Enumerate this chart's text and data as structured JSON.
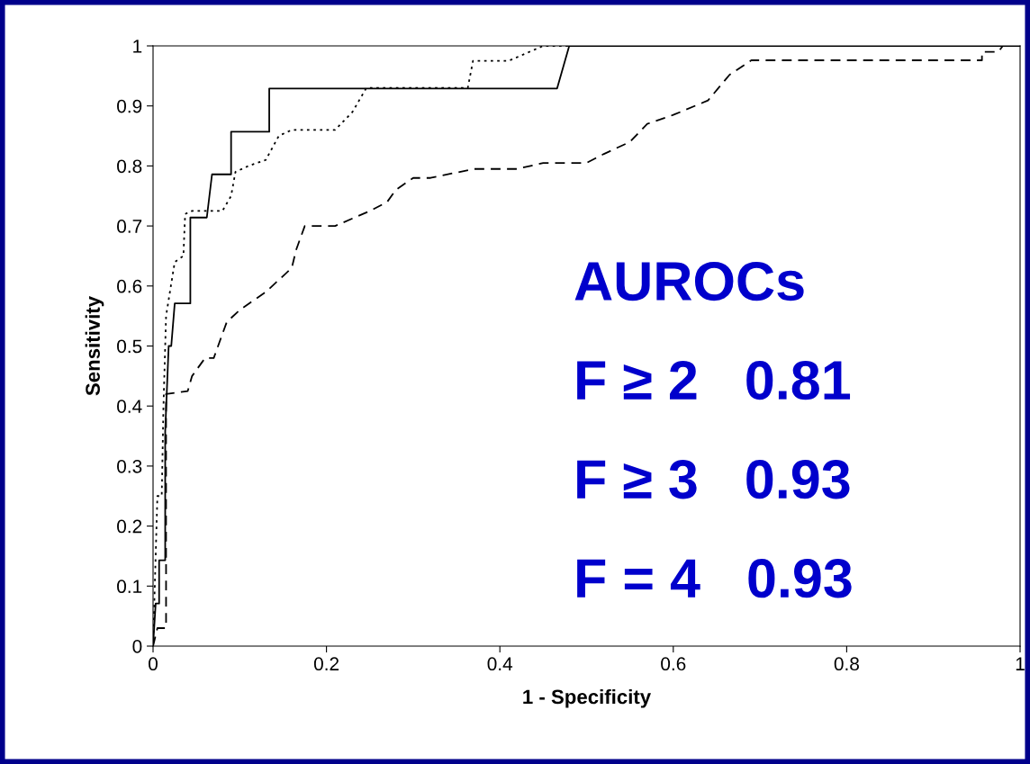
{
  "chart_data": {
    "type": "line",
    "xlabel": "1 - Specificity",
    "ylabel": "Sensitivity",
    "xlim": [
      0,
      1
    ],
    "ylim": [
      0,
      1
    ],
    "xticks": [
      0,
      0.2,
      0.4,
      0.6,
      0.8,
      1
    ],
    "yticks": [
      0,
      0.1,
      0.2,
      0.3,
      0.4,
      0.5,
      0.6,
      0.7,
      0.8,
      0.9,
      1
    ],
    "grid": false,
    "legend": false,
    "marker": "none",
    "series": [
      {
        "color": "#000000",
        "line_style": "solid",
        "x": [
          0,
          0.003,
          0.007,
          0.007,
          0.014,
          0.014,
          0.018,
          0.021,
          0.025,
          0.043,
          0.043,
          0.062,
          0.068,
          0.09,
          0.09,
          0.134,
          0.134,
          0.466,
          0.48,
          1
        ],
        "values": [
          0,
          0.071,
          0.071,
          0.143,
          0.143,
          0.357,
          0.5,
          0.5,
          0.571,
          0.571,
          0.714,
          0.714,
          0.786,
          0.786,
          0.857,
          0.857,
          0.929,
          0.929,
          1,
          1
        ]
      },
      {
        "color": "#000000",
        "line_style": "dotted",
        "x": [
          0,
          0.005,
          0.01,
          0.012,
          0.015,
          0.025,
          0.035,
          0.037,
          0.045,
          0.08,
          0.09,
          0.095,
          0.11,
          0.13,
          0.145,
          0.16,
          0.21,
          0.23,
          0.246,
          0.363,
          0.369,
          0.41,
          0.45,
          1
        ],
        "values": [
          0,
          0.25,
          0.25,
          0.4,
          0.55,
          0.64,
          0.65,
          0.72,
          0.725,
          0.725,
          0.75,
          0.79,
          0.8,
          0.81,
          0.85,
          0.86,
          0.86,
          0.89,
          0.93,
          0.93,
          0.975,
          0.975,
          1,
          1
        ]
      },
      {
        "color": "#000000",
        "line_style": "dashed",
        "x": [
          0,
          0.005,
          0.015,
          0.015,
          0.04,
          0.045,
          0.06,
          0.07,
          0.085,
          0.1,
          0.13,
          0.16,
          0.165,
          0.175,
          0.21,
          0.25,
          0.27,
          0.28,
          0.3,
          0.32,
          0.37,
          0.42,
          0.45,
          0.5,
          0.52,
          0.55,
          0.57,
          0.6,
          0.64,
          0.665,
          0.69,
          0.956,
          0.956,
          0.975,
          0.98,
          1
        ],
        "values": [
          0,
          0.03,
          0.03,
          0.42,
          0.425,
          0.45,
          0.48,
          0.48,
          0.54,
          0.56,
          0.59,
          0.63,
          0.66,
          0.7,
          0.7,
          0.725,
          0.74,
          0.76,
          0.78,
          0.78,
          0.795,
          0.795,
          0.805,
          0.805,
          0.82,
          0.84,
          0.87,
          0.885,
          0.909,
          0.952,
          0.976,
          0.976,
          0.99,
          0.99,
          1,
          1
        ]
      }
    ],
    "annotations": [
      "AUROCs",
      "F ≥ 2   0.81",
      "F ≥ 3   0.93",
      "F = 4   0.93"
    ]
  }
}
